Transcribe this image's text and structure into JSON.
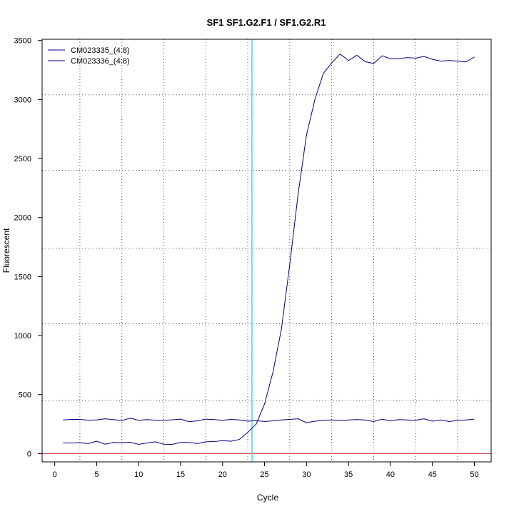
{
  "chart_data": {
    "type": "line",
    "title": "SF1  SF1.G2.F1 / SF1.G2.R1",
    "xlabel": "Cycle",
    "ylabel": "Fluorescent",
    "xlim": [
      -1.5,
      52
    ],
    "ylim": [
      -70,
      3510
    ],
    "x_ticks": [
      0,
      5,
      10,
      15,
      20,
      25,
      30,
      35,
      40,
      45,
      50
    ],
    "y_ticks": [
      0,
      500,
      1000,
      1500,
      2000,
      2500,
      3000,
      3500
    ],
    "grid": true,
    "grid_x": [
      3,
      8,
      13,
      18,
      23,
      28,
      33,
      38,
      43,
      48
    ],
    "grid_y": [
      450,
      1100,
      1740,
      2400,
      3040
    ],
    "legend_position": "top-left",
    "series": [
      {
        "name": "CM023335_(4:8)",
        "color": "#000080",
        "x": [
          1,
          2,
          3,
          4,
          5,
          6,
          7,
          8,
          9,
          10,
          11,
          12,
          13,
          14,
          15,
          16,
          17,
          18,
          19,
          20,
          21,
          22,
          23,
          24,
          25,
          26,
          27,
          28,
          29,
          30,
          31,
          32,
          33,
          34,
          35,
          36,
          37,
          38,
          39,
          40,
          41,
          42,
          43,
          44,
          45,
          46,
          47,
          48,
          49,
          50
        ],
        "values": [
          90,
          90,
          92,
          85,
          105,
          80,
          95,
          92,
          96,
          78,
          90,
          100,
          80,
          78,
          95,
          95,
          85,
          100,
          102,
          110,
          105,
          120,
          180,
          250,
          420,
          690,
          1050,
          1600,
          2200,
          2700,
          3000,
          3220,
          3310,
          3385,
          3330,
          3375,
          3320,
          3305,
          3370,
          3345,
          3345,
          3355,
          3350,
          3365,
          3340,
          3325,
          3330,
          3325,
          3318,
          3360
        ]
      },
      {
        "name": "CM023336_(4:8)",
        "color": "#000080",
        "x": [
          1,
          2,
          3,
          4,
          5,
          6,
          7,
          8,
          9,
          10,
          11,
          12,
          13,
          14,
          15,
          16,
          17,
          18,
          19,
          20,
          21,
          22,
          23,
          24,
          25,
          26,
          27,
          28,
          29,
          30,
          31,
          32,
          33,
          34,
          35,
          36,
          37,
          38,
          39,
          40,
          41,
          42,
          43,
          44,
          45,
          46,
          47,
          48,
          49,
          50
        ],
        "values": [
          285,
          290,
          290,
          283,
          285,
          295,
          288,
          280,
          300,
          282,
          288,
          283,
          283,
          286,
          292,
          270,
          278,
          292,
          288,
          282,
          290,
          285,
          275,
          280,
          272,
          278,
          285,
          290,
          295,
          262,
          275,
          282,
          285,
          280,
          285,
          288,
          285,
          272,
          292,
          278,
          288,
          285,
          282,
          295,
          275,
          285,
          272,
          282,
          285,
          292
        ]
      }
    ],
    "baseline": {
      "value": 0,
      "color": "#cc3333"
    },
    "threshold": {
      "cycle": 23.5,
      "color": "#33ddee"
    }
  }
}
